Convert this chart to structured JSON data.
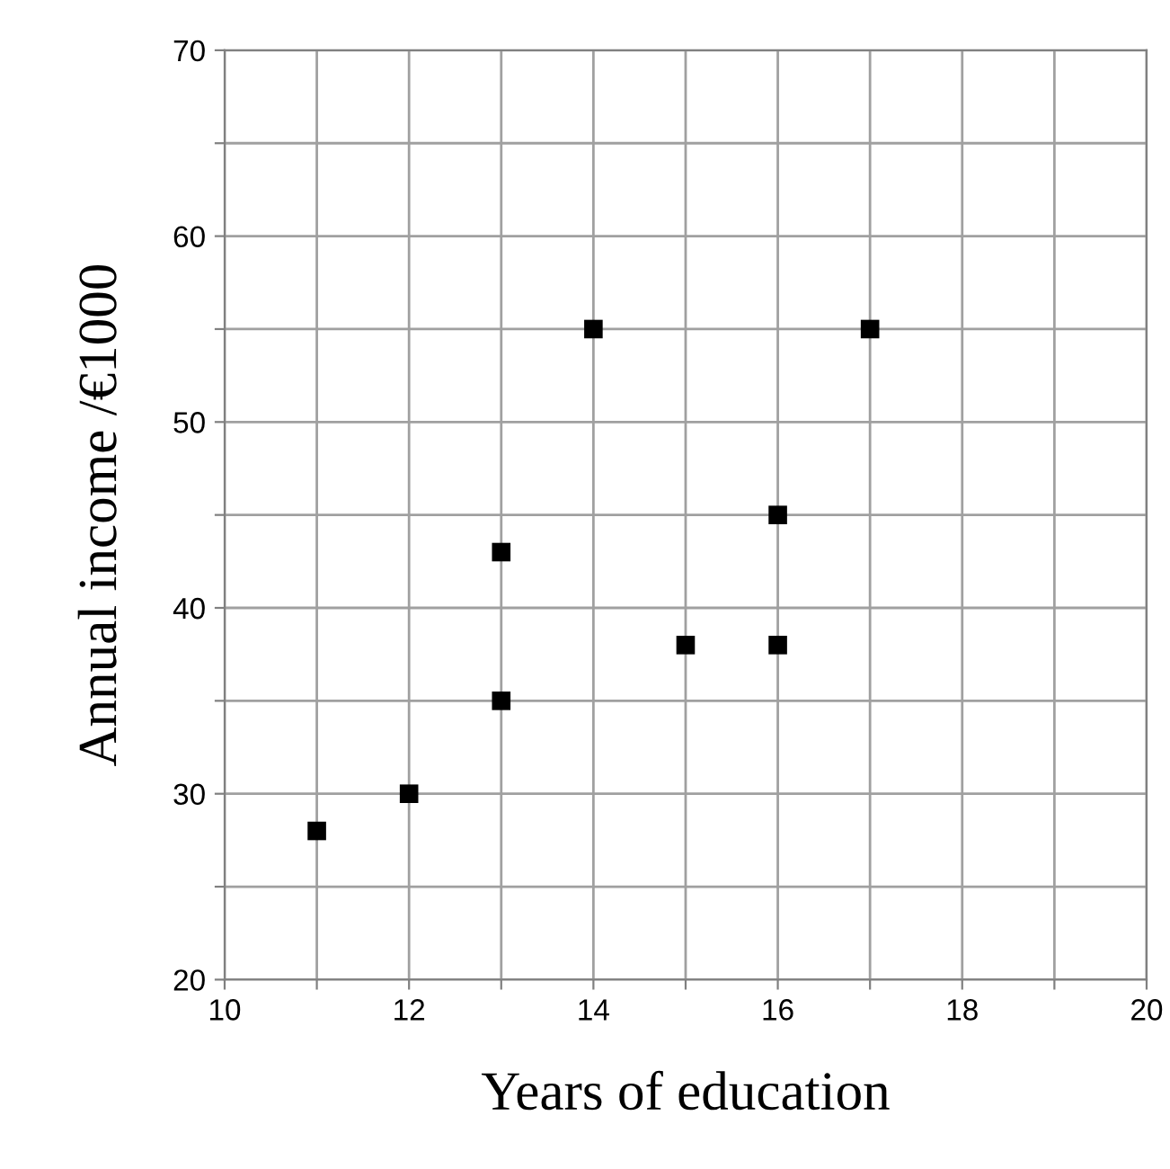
{
  "chart_data": {
    "type": "scatter",
    "xlabel": "Years of education",
    "ylabel": "Annual income /€1000",
    "x": [
      11,
      12,
      13,
      13,
      14,
      15,
      16,
      16,
      17
    ],
    "values": [
      28,
      30,
      43,
      35,
      55,
      38,
      45,
      38,
      55
    ],
    "color": "#000000",
    "marker": "square",
    "xlim": [
      10,
      20
    ],
    "ylim": [
      20,
      70
    ],
    "xticks": [
      10,
      {
        "value": 11,
        "label": null
      },
      12,
      {
        "value": 13,
        "label": null
      },
      14,
      {
        "value": 15,
        "label": null
      },
      16,
      {
        "value": 17,
        "label": null
      },
      18,
      {
        "value": 19,
        "label": null
      },
      20
    ],
    "yticks": [
      20,
      {
        "value": 25,
        "label": null
      },
      30,
      {
        "value": 35,
        "label": null
      },
      40,
      {
        "value": 45,
        "label": null
      },
      50,
      {
        "value": 55,
        "label": null
      },
      60,
      {
        "value": 65,
        "label": null
      },
      70
    ],
    "grid": true
  }
}
